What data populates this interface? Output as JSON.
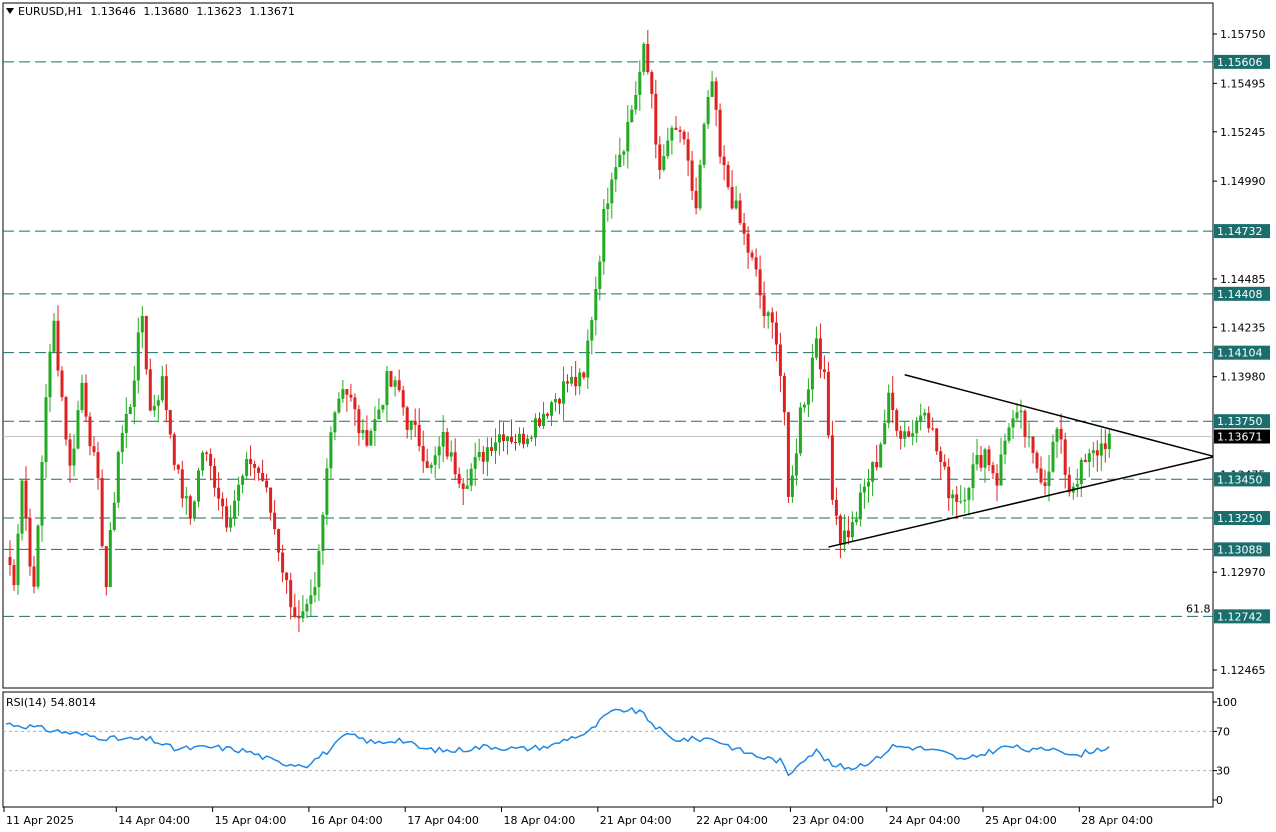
{
  "header": {
    "symbol": "EURUSD,H1",
    "open": "1.13646",
    "high": "1.13680",
    "low": "1.13623",
    "close": "1.13671"
  },
  "rsi": {
    "label": "RSI(14)",
    "value": "54.8014",
    "levels": [
      "100",
      "70",
      "30",
      "0"
    ],
    "line_color": "#1e88e5"
  },
  "colors": {
    "bull": "#22aa22",
    "bear": "#e02020",
    "level_line": "#1a6e6e",
    "label_bg": "#1a6e6e",
    "current_bg": "#000000"
  },
  "chart_data": {
    "type": "candlestick",
    "price_axis": {
      "ticks": [
        "1.15750",
        "1.15495",
        "1.15245",
        "1.14990",
        "1.14485",
        "1.14235",
        "1.13980",
        "1.12970",
        "1.12465"
      ],
      "partial_tick": "1.13475",
      "range": [
        1.1238,
        1.1598
      ]
    },
    "level_labels": [
      "1.15606",
      "1.14732",
      "1.14408",
      "1.14104",
      "1.13750",
      "1.13450",
      "1.13250",
      "1.13088",
      "1.12742"
    ],
    "current_price": "1.13671",
    "fib_label": "61.8",
    "time_axis": [
      "11 Apr 2025",
      "14 Apr 04:00",
      "15 Apr 04:00",
      "16 Apr 04:00",
      "17 Apr 04:00",
      "18 Apr 04:00",
      "21 Apr 04:00",
      "22 Apr 04:00",
      "23 Apr 04:00",
      "24 Apr 04:00",
      "25 Apr 04:00",
      "28 Apr 04:00"
    ],
    "triangle": {
      "upper": [
        [
          "24 Apr 08:00",
          1.1399
        ],
        [
          "28 Apr 13:00",
          1.137
        ]
      ],
      "lower": [
        [
          "23 Apr 13:00",
          1.131
        ],
        [
          "28 Apr 13:00",
          1.1345
        ]
      ]
    },
    "path_anchors": [
      [
        "11 Apr 00:00",
        1.1305
      ],
      [
        "11 Apr 02:00",
        1.1295
      ],
      [
        "11 Apr 04:00",
        1.1345
      ],
      [
        "11 Apr 07:00",
        1.1285
      ],
      [
        "11 Apr 10:00",
        1.139
      ],
      [
        "11 Apr 12:00",
        1.1425
      ],
      [
        "11 Apr 16:00",
        1.135
      ],
      [
        "11 Apr 19:00",
        1.1395
      ],
      [
        "11 Apr 23:00",
        1.134
      ],
      [
        "14 Apr 01:00",
        1.129
      ],
      [
        "14 Apr 04:00",
        1.136
      ],
      [
        "14 Apr 07:00",
        1.1385
      ],
      [
        "14 Apr 10:00",
        1.143
      ],
      [
        "14 Apr 12:00",
        1.138
      ],
      [
        "14 Apr 15:00",
        1.1395
      ],
      [
        "14 Apr 19:00",
        1.1345
      ],
      [
        "14 Apr 22:00",
        1.1325
      ],
      [
        "15 Apr 01:00",
        1.136
      ],
      [
        "15 Apr 04:00",
        1.1345
      ],
      [
        "15 Apr 07:00",
        1.1325
      ],
      [
        "15 Apr 10:00",
        1.134
      ],
      [
        "15 Apr 13:00",
        1.1355
      ],
      [
        "15 Apr 16:00",
        1.1345
      ],
      [
        "15 Apr 19:00",
        1.132
      ],
      [
        "15 Apr 22:00",
        1.129
      ],
      [
        "16 Apr 01:00",
        1.127
      ],
      [
        "16 Apr 03:00",
        1.1275
      ],
      [
        "16 Apr 05:00",
        1.1285
      ],
      [
        "16 Apr 07:00",
        1.1325
      ],
      [
        "16 Apr 09:00",
        1.1375
      ],
      [
        "16 Apr 12:00",
        1.1395
      ],
      [
        "16 Apr 14:00",
        1.1385
      ],
      [
        "16 Apr 17:00",
        1.1365
      ],
      [
        "16 Apr 20:00",
        1.1375
      ],
      [
        "16 Apr 23:00",
        1.1395
      ],
      [
        "17 Apr 02:00",
        1.139
      ],
      [
        "17 Apr 04:00",
        1.1375
      ],
      [
        "17 Apr 07:00",
        1.1365
      ],
      [
        "17 Apr 10:00",
        1.135
      ],
      [
        "17 Apr 13:00",
        1.1365
      ],
      [
        "17 Apr 15:00",
        1.1355
      ],
      [
        "17 Apr 18:00",
        1.1345
      ],
      [
        "17 Apr 22:00",
        1.1355
      ],
      [
        "18 Apr 01:00",
        1.1365
      ],
      [
        "18 Apr 04:00",
        1.137
      ],
      [
        "18 Apr 08:00",
        1.1365
      ],
      [
        "18 Apr 12:00",
        1.1375
      ],
      [
        "18 Apr 16:00",
        1.1385
      ],
      [
        "18 Apr 20:00",
        1.1395
      ],
      [
        "21 Apr 00:00",
        1.1395
      ],
      [
        "21 Apr 01:00",
        1.1415
      ],
      [
        "21 Apr 03:00",
        1.1445
      ],
      [
        "21 Apr 05:00",
        1.148
      ],
      [
        "21 Apr 07:00",
        1.1505
      ],
      [
        "21 Apr 10:00",
        1.152
      ],
      [
        "21 Apr 13:00",
        1.1545
      ],
      [
        "21 Apr 15:00",
        1.1565
      ],
      [
        "21 Apr 17:00",
        1.1545
      ],
      [
        "21 Apr 19:00",
        1.15
      ],
      [
        "21 Apr 21:00",
        1.152
      ],
      [
        "22 Apr 00:00",
        1.1525
      ],
      [
        "22 Apr 02:00",
        1.1505
      ],
      [
        "22 Apr 04:00",
        1.1485
      ],
      [
        "22 Apr 06:00",
        1.1525
      ],
      [
        "22 Apr 08:00",
        1.155
      ],
      [
        "22 Apr 10:00",
        1.151
      ],
      [
        "22 Apr 13:00",
        1.149
      ],
      [
        "22 Apr 16:00",
        1.147
      ],
      [
        "22 Apr 19:00",
        1.145
      ],
      [
        "22 Apr 21:00",
        1.143
      ],
      [
        "23 Apr 00:00",
        1.142
      ],
      [
        "23 Apr 02:00",
        1.138
      ],
      [
        "23 Apr 03:00",
        1.133
      ],
      [
        "23 Apr 04:00",
        1.1345
      ],
      [
        "23 Apr 06:00",
        1.138
      ],
      [
        "23 Apr 08:00",
        1.1395
      ],
      [
        "23 Apr 10:00",
        1.142
      ],
      [
        "23 Apr 12:00",
        1.1395
      ],
      [
        "23 Apr 14:00",
        1.134
      ],
      [
        "23 Apr 16:00",
        1.1315
      ],
      [
        "23 Apr 19:00",
        1.132
      ],
      [
        "23 Apr 22:00",
        1.134
      ],
      [
        "24 Apr 01:00",
        1.1355
      ],
      [
        "24 Apr 04:00",
        1.1385
      ],
      [
        "24 Apr 07:00",
        1.137
      ],
      [
        "24 Apr 10:00",
        1.137
      ],
      [
        "24 Apr 13:00",
        1.1385
      ],
      [
        "24 Apr 16:00",
        1.136
      ],
      [
        "24 Apr 19:00",
        1.134
      ],
      [
        "24 Apr 22:00",
        1.1335
      ],
      [
        "25 Apr 01:00",
        1.135
      ],
      [
        "25 Apr 04:00",
        1.136
      ],
      [
        "25 Apr 07:00",
        1.1345
      ],
      [
        "25 Apr 10:00",
        1.1375
      ],
      [
        "25 Apr 13:00",
        1.1375
      ],
      [
        "25 Apr 16:00",
        1.1355
      ],
      [
        "25 Apr 19:00",
        1.1345
      ],
      [
        "25 Apr 22:00",
        1.137
      ],
      [
        "28 Apr 01:00",
        1.134
      ],
      [
        "28 Apr 04:00",
        1.135
      ],
      [
        "28 Apr 06:00",
        1.1355
      ],
      [
        "28 Apr 08:00",
        1.136
      ],
      [
        "28 Apr 10:00",
        1.1365
      ],
      [
        "28 Apr 12:00",
        1.13671
      ]
    ],
    "rsi_anchors": [
      [
        "11 Apr 00:00",
        78
      ],
      [
        "11 Apr 06:00",
        75
      ],
      [
        "11 Apr 10:00",
        72
      ],
      [
        "11 Apr 20:00",
        66
      ],
      [
        "14 Apr 04:00",
        62
      ],
      [
        "14 Apr 12:00",
        62
      ],
      [
        "14 Apr 18:00",
        52
      ],
      [
        "15 Apr 04:00",
        54
      ],
      [
        "15 Apr 12:00",
        50
      ],
      [
        "15 Apr 20:00",
        38
      ],
      [
        "16 Apr 03:00",
        36
      ],
      [
        "16 Apr 09:00",
        52
      ],
      [
        "16 Apr 13:00",
        67
      ],
      [
        "16 Apr 20:00",
        58
      ],
      [
        "17 Apr 02:00",
        62
      ],
      [
        "17 Apr 08:00",
        52
      ],
      [
        "17 Apr 15:00",
        50
      ],
      [
        "18 Apr 00:00",
        55
      ],
      [
        "18 Apr 08:00",
        52
      ],
      [
        "18 Apr 16:00",
        55
      ],
      [
        "18 Apr 20:00",
        63
      ],
      [
        "21 Apr 01:00",
        68
      ],
      [
        "21 Apr 06:00",
        88
      ],
      [
        "21 Apr 10:00",
        92
      ],
      [
        "21 Apr 14:00",
        90
      ],
      [
        "21 Apr 18:00",
        75
      ],
      [
        "21 Apr 22:00",
        62
      ],
      [
        "22 Apr 04:00",
        62
      ],
      [
        "22 Apr 08:00",
        63
      ],
      [
        "22 Apr 14:00",
        52
      ],
      [
        "22 Apr 20:00",
        44
      ],
      [
        "23 Apr 01:00",
        40
      ],
      [
        "23 Apr 03:00",
        25
      ],
      [
        "23 Apr 06:00",
        40
      ],
      [
        "23 Apr 10:00",
        50
      ],
      [
        "23 Apr 14:00",
        35
      ],
      [
        "23 Apr 19:00",
        33
      ],
      [
        "24 Apr 01:00",
        42
      ],
      [
        "24 Apr 05:00",
        55
      ],
      [
        "24 Apr 12:00",
        53
      ],
      [
        "24 Apr 18:00",
        48
      ],
      [
        "24 Apr 23:00",
        40
      ],
      [
        "25 Apr 04:00",
        48
      ],
      [
        "25 Apr 10:00",
        55
      ],
      [
        "25 Apr 16:00",
        50
      ],
      [
        "25 Apr 22:00",
        54
      ],
      [
        "28 Apr 02:00",
        44
      ],
      [
        "28 Apr 06:00",
        50
      ],
      [
        "28 Apr 12:00",
        54.8
      ]
    ]
  }
}
